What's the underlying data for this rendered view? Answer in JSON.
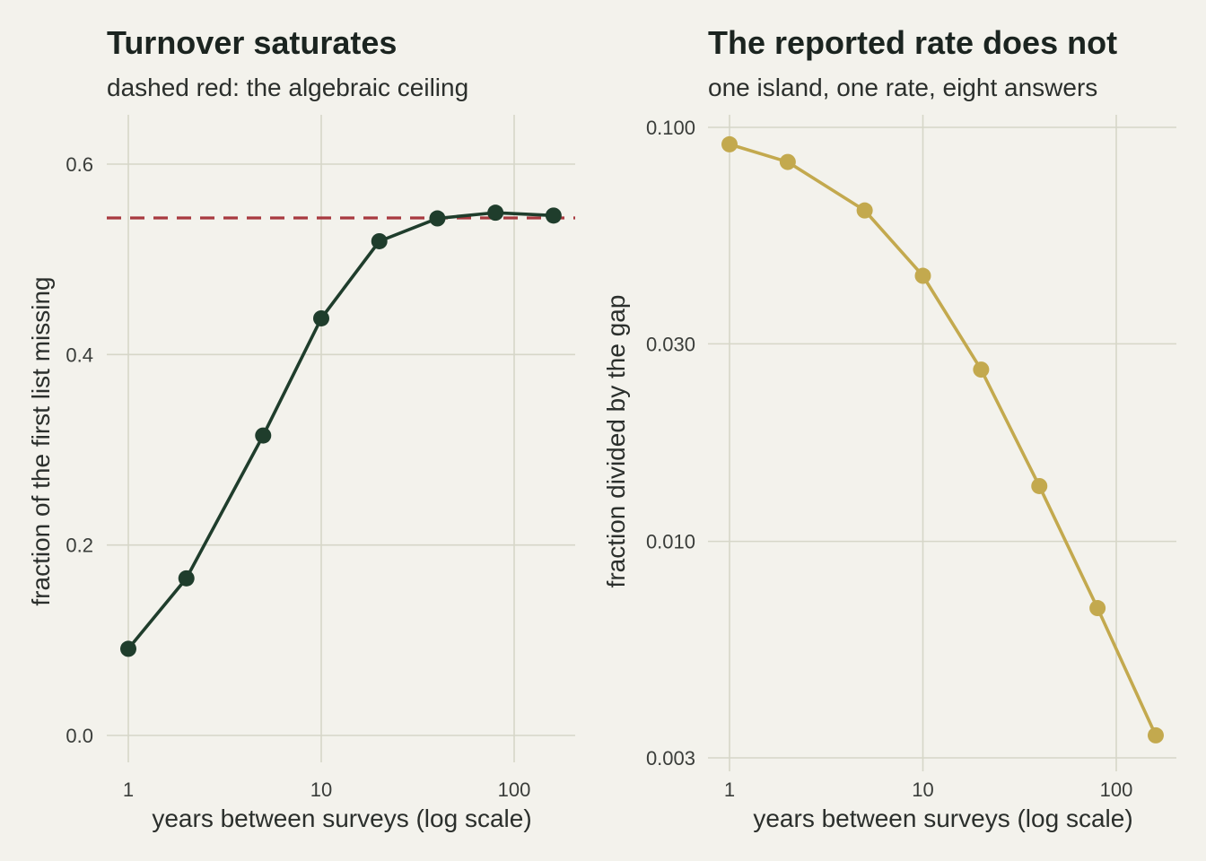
{
  "colors": {
    "background": "#f3f2ec",
    "grid": "#d6d6c8",
    "left_series": "#1f3d2c",
    "right_series": "#c3a94e",
    "ceiling": "#a83a40"
  },
  "chart_data": [
    {
      "type": "line",
      "title": "Turnover saturates",
      "subtitle": "dashed red: the algebraic ceiling",
      "xlabel": "years between surveys (log scale)",
      "ylabel": "fraction of the first list missing",
      "x_scale": "log",
      "y_scale": "linear",
      "xlim": [
        1,
        160
      ],
      "ylim": [
        0,
        0.6
      ],
      "x_ticks": [
        1,
        10,
        100
      ],
      "x_tick_labels": [
        "1",
        "10",
        "100"
      ],
      "y_ticks": [
        0,
        0.2,
        0.4,
        0.6
      ],
      "y_tick_labels": [
        "0.0",
        "0.2",
        "0.4",
        "0.6"
      ],
      "grid": true,
      "legend": "none",
      "reference_line": {
        "y": 0.5435,
        "style": "dashed",
        "color": "#a83a40"
      },
      "series": [
        {
          "x": [
            1,
            2,
            5,
            10,
            20,
            40,
            80,
            160
          ],
          "y": [
            0.091,
            0.165,
            0.315,
            0.438,
            0.519,
            0.543,
            0.549,
            0.546
          ]
        }
      ]
    },
    {
      "type": "line",
      "title": "The reported rate does not",
      "subtitle": "one island, one rate, eight answers",
      "xlabel": "years between surveys (log scale)",
      "ylabel": "fraction divided by the gap",
      "x_scale": "log",
      "y_scale": "log",
      "xlim": [
        1,
        160
      ],
      "ylim": [
        0.003,
        0.1
      ],
      "x_ticks": [
        1,
        10,
        100
      ],
      "x_tick_labels": [
        "1",
        "10",
        "100"
      ],
      "y_ticks": [
        0.003,
        0.01,
        0.03,
        0.1
      ],
      "y_tick_labels": [
        "0.003",
        "0.010",
        "0.030",
        "0.100"
      ],
      "grid": true,
      "legend": "none",
      "series": [
        {
          "x": [
            1,
            2,
            5,
            10,
            20,
            40,
            80,
            160
          ],
          "y": [
            0.091,
            0.0825,
            0.063,
            0.0438,
            0.026,
            0.0136,
            0.0069,
            0.0034
          ]
        }
      ]
    }
  ]
}
